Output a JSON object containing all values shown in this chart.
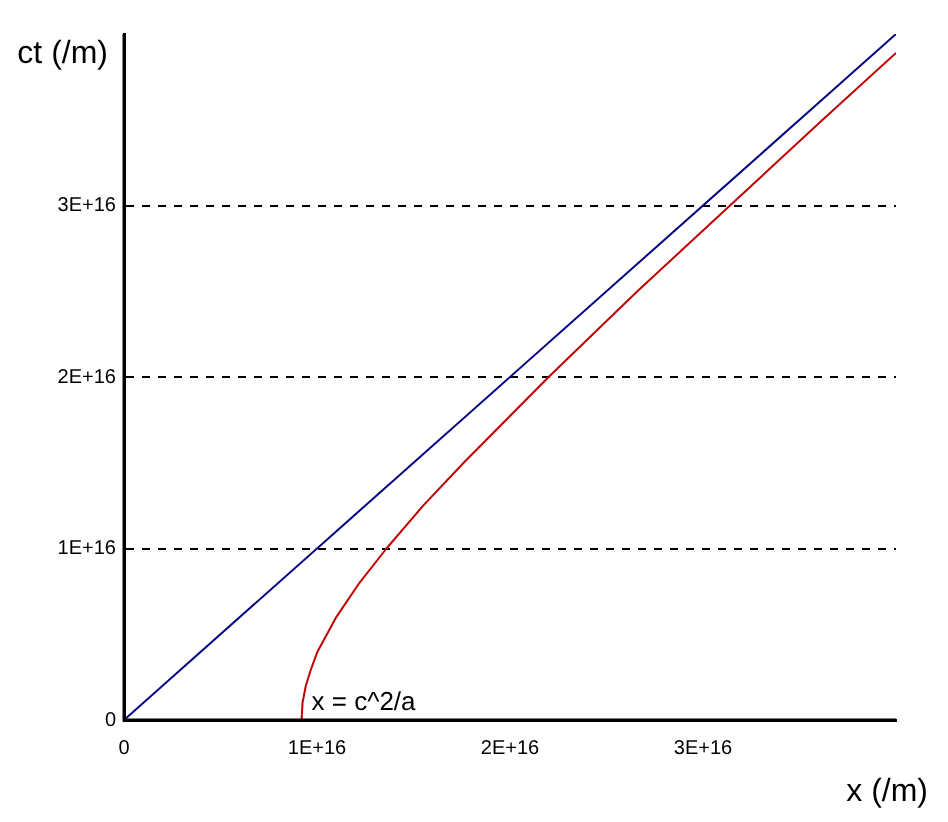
{
  "chart_data": {
    "type": "line",
    "xlabel": "x (/m)",
    "ylabel": "ct (/m)",
    "xlim": [
      0,
      4e+16
    ],
    "ylim": [
      0,
      4e+16
    ],
    "xticks": [
      0,
      {
        "value": 1e+16,
        "label": "1E+16"
      },
      {
        "value": 2e+16,
        "label": "2E+16"
      },
      {
        "value": 3e+16,
        "label": "3E+16"
      }
    ],
    "yticks": [
      0,
      {
        "value": 1e+16,
        "label": "1E+16"
      },
      {
        "value": 2e+16,
        "label": "2E+16"
      },
      {
        "value": 3e+16,
        "label": "3E+16"
      }
    ],
    "grid": "y",
    "legend": false,
    "marker": "none",
    "series": [
      {
        "color": "#000080",
        "x": [
          0,
          4e+16
        ],
        "values": [
          0,
          4e+16
        ]
      },
      {
        "color": "#c00000",
        "x": [
          9200000000000000.0,
          9250000000000000.0,
          9420000000000000.0,
          9700000000000000.0,
          1.003e+16,
          1.1e+16,
          1.22e+16,
          1.36e+16,
          1.55e+16,
          1.76e+16,
          2.2e+16,
          2.66e+16,
          3.14e+16,
          3.62e+16,
          4e+16
        ],
        "values": [
          0,
          1000000000000000.0,
          2000000000000000.0,
          3000000000000000.0,
          4000000000000000.0,
          6000000000000000.0,
          8000000000000000.0,
          1e+16,
          1.25e+16,
          1.5e+16,
          2e+16,
          2.5e+16,
          3e+16,
          3.5e+16,
          3.89e+16
        ]
      }
    ],
    "annotations": [
      {
        "text": "x = c^2/a",
        "x": 9200000000000000.0,
        "y": 0
      }
    ]
  }
}
